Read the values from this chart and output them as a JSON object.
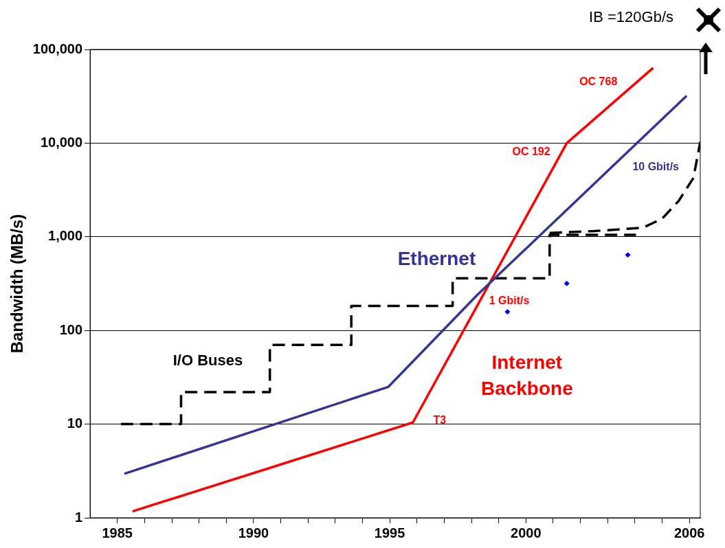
{
  "chart_data": {
    "type": "line",
    "ylabel": "Bandwidth (MB/s)",
    "log": "y",
    "grid": "y",
    "marker": "none",
    "xlim": [
      1984,
      2006.4
    ],
    "xticks": [
      {
        "value": 1985,
        "label": "1985"
      },
      {
        "value": 1986,
        "label": null
      },
      {
        "value": 1987,
        "label": null
      },
      {
        "value": 1988,
        "label": null
      },
      {
        "value": 1989,
        "label": null
      },
      {
        "value": 1990,
        "label": "1990"
      },
      {
        "value": 1991,
        "label": null
      },
      {
        "value": 1992,
        "label": null
      },
      {
        "value": 1993,
        "label": null
      },
      {
        "value": 1994,
        "label": null
      },
      {
        "value": 1995,
        "label": "1995"
      },
      {
        "value": 1996,
        "label": null
      },
      {
        "value": 1997,
        "label": null
      },
      {
        "value": 1998,
        "label": null
      },
      {
        "value": 1999,
        "label": null
      },
      {
        "value": 2000,
        "label": "2000"
      },
      {
        "value": 2001,
        "label": null
      },
      {
        "value": 2002,
        "label": null
      },
      {
        "value": 2003,
        "label": null
      },
      {
        "value": 2004,
        "label": null
      },
      {
        "value": 2005,
        "label": null
      },
      {
        "value": 2006,
        "label": "2006"
      }
    ],
    "ylim": [
      1,
      100000
    ],
    "yticks": [
      1,
      10,
      100,
      {
        "value": 1000,
        "label": "1,000"
      },
      {
        "value": 10000,
        "label": "10,000"
      },
      {
        "value": 100000,
        "label": "100,000"
      }
    ],
    "series": [
      {
        "name": "Ethernet",
        "color": "#333399",
        "line_style": "solid",
        "x": [
          1985.26,
          1994.95,
          1998.2,
          2005.9
        ],
        "values": [
          2.95,
          25,
          237,
          32000
        ]
      },
      {
        "name": "Internet Backbone",
        "color": "#ff0000",
        "line_style": "solid",
        "x": [
          1985.56,
          1995.85,
          2001.5,
          2004.67
        ],
        "values": [
          1.17,
          10.4,
          10000,
          63600
        ]
      },
      {
        "name": "I/O Buses",
        "color": "#000000",
        "line_style": "dashed",
        "x": [
          1985.13,
          1987.34,
          1987.34,
          1990.6,
          1990.6,
          1993.59,
          1993.59,
          1997.31,
          1997.31,
          2000.87,
          2000.87,
          2004.04
        ],
        "values": [
          10,
          10,
          22,
          22,
          70,
          70,
          183,
          183,
          361,
          361,
          1050,
          1050
        ]
      },
      {
        "color": "#000000",
        "line_style": "dashed",
        "x": [
          2000.87,
          2002.5,
          2004.3,
          2005,
          2005.6,
          2006.15,
          2006.4
        ],
        "values": [
          1100,
          1150,
          1250,
          1560,
          2400,
          4250,
          10300
        ]
      },
      {
        "type": "scatter",
        "color": "#0000ff",
        "marker": "diamond",
        "x": [
          1999.32,
          2001.5,
          2003.74
        ],
        "values": [
          158,
          317,
          640
        ]
      }
    ],
    "annotations": [
      "IB =120Gb/s",
      "OC 768",
      "OC 192",
      "10 Gbit/s",
      "1 Gbit/s",
      "T3"
    ]
  }
}
